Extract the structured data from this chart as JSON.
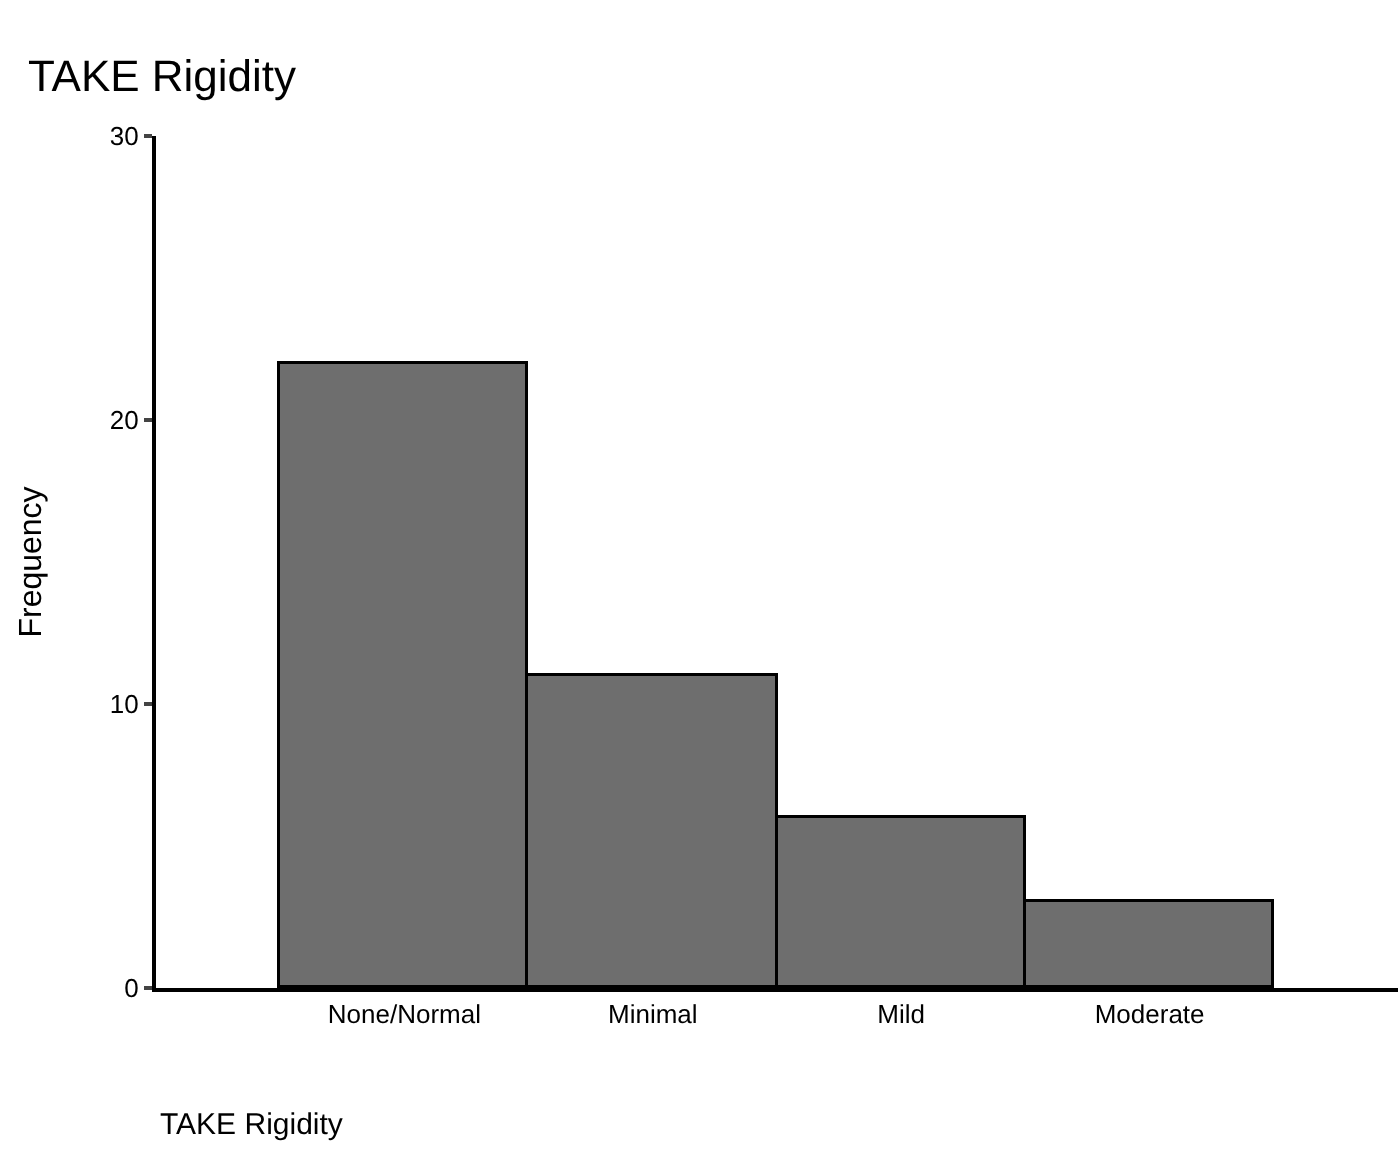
{
  "chart_data": {
    "type": "bar",
    "title": "TAKE Rigidity",
    "xlabel": "TAKE Rigidity",
    "ylabel": "Frequency",
    "categories": [
      "None/Normal",
      "Minimal",
      "Mild",
      "Moderate"
    ],
    "values": [
      22,
      11,
      6,
      3
    ],
    "color": "#6e6e6e",
    "ylim": [
      0,
      30
    ],
    "yticks": [
      0,
      10,
      20,
      30
    ]
  }
}
